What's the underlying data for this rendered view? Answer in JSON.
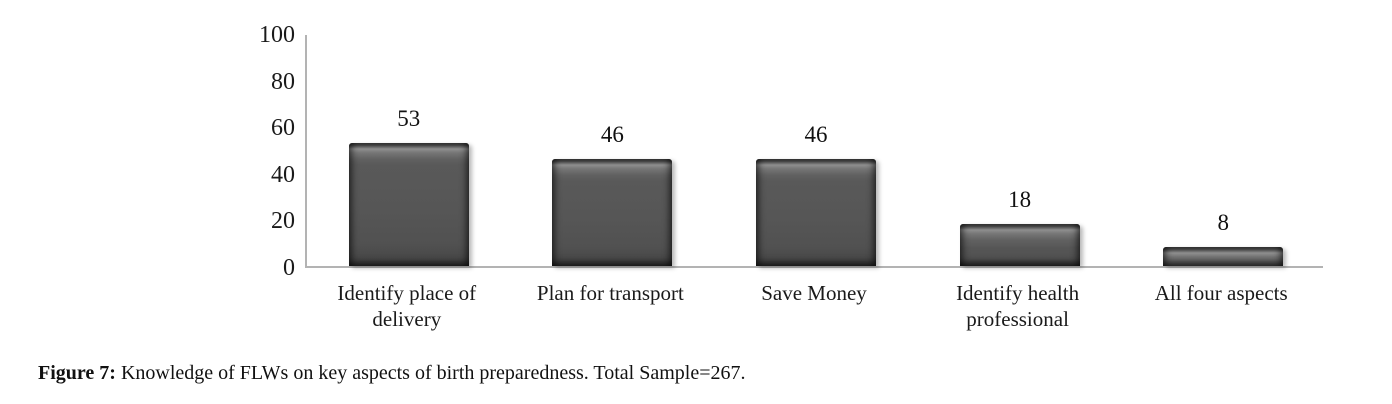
{
  "figure": {
    "caption_label": "Figure 7:",
    "caption_text": " Knowledge of FLWs on key aspects of birth preparedness. Total Sample=267."
  },
  "chart_data": {
    "type": "bar",
    "title": "",
    "categories": [
      "Identify place of delivery",
      "Plan for transport",
      "Save Money",
      "Identify health professional",
      "All four aspects"
    ],
    "values": [
      53,
      46,
      46,
      18,
      8
    ],
    "data_labels": [
      "53",
      "46",
      "46",
      "18",
      "8"
    ],
    "xlabel": "",
    "ylabel": "",
    "ylim": [
      0,
      100
    ],
    "y_ticks": [
      0,
      20,
      40,
      60,
      80,
      100
    ],
    "grid": false,
    "legend": false,
    "bar_color": "#585858",
    "axis_color": "#b3b3b3",
    "text_color": "#1a1a1a"
  }
}
